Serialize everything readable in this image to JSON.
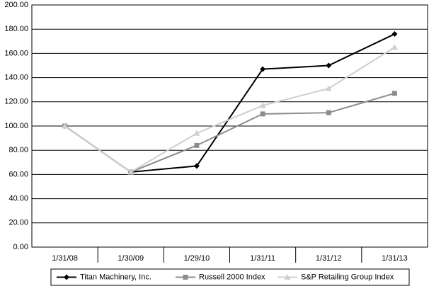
{
  "chart_data": {
    "type": "line",
    "categories": [
      "1/31/08",
      "1/30/09",
      "1/29/10",
      "1/31/11",
      "1/31/12",
      "1/31/13"
    ],
    "series": [
      {
        "name": "Titan Machinery, Inc.",
        "color": "#000000",
        "marker": "diamond",
        "values": [
          100,
          62,
          67,
          147,
          150,
          176
        ]
      },
      {
        "name": "Russell 2000 Index",
        "color": "#8c8c8c",
        "marker": "square",
        "values": [
          100,
          62,
          84,
          110,
          111,
          127
        ]
      },
      {
        "name": "S&P Retailing Group Index",
        "color": "#cfcfcf",
        "marker": "triangle",
        "values": [
          100,
          62,
          94,
          117,
          131,
          165
        ]
      }
    ],
    "ylim": [
      0,
      200
    ],
    "yticks": [
      {
        "value": 0,
        "label": "0.00"
      },
      {
        "value": 20,
        "label": "20.00"
      },
      {
        "value": 40,
        "label": "40.00"
      },
      {
        "value": 60,
        "label": "60.00"
      },
      {
        "value": 80,
        "label": "80.00"
      },
      {
        "value": 100,
        "label": "100.00"
      },
      {
        "value": 120,
        "label": "120.00"
      },
      {
        "value": 140,
        "label": "140.00"
      },
      {
        "value": 160,
        "label": "160.00"
      },
      {
        "value": 180,
        "label": "180.00"
      },
      {
        "value": 200,
        "label": "200.00"
      }
    ],
    "grid": true,
    "legend": "bottom"
  }
}
